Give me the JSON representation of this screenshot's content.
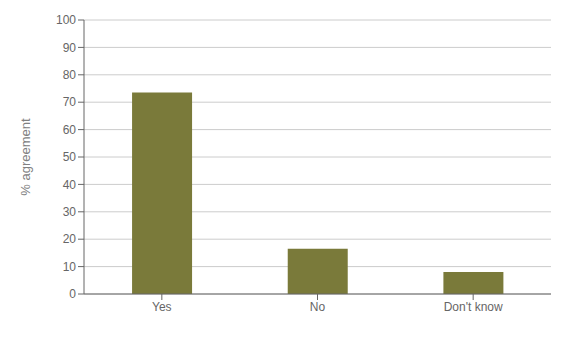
{
  "chart_data": {
    "type": "bar",
    "categories": [
      "Yes",
      "No",
      "Don't know"
    ],
    "values": [
      73.5,
      16.5,
      8.0
    ],
    "color": "#7a7a3a",
    "ylabel": "% agreement",
    "ylim": [
      0,
      100
    ],
    "yticks": [
      0,
      10,
      20,
      30,
      40,
      50,
      60,
      70,
      80,
      90,
      100
    ],
    "grid": true
  }
}
